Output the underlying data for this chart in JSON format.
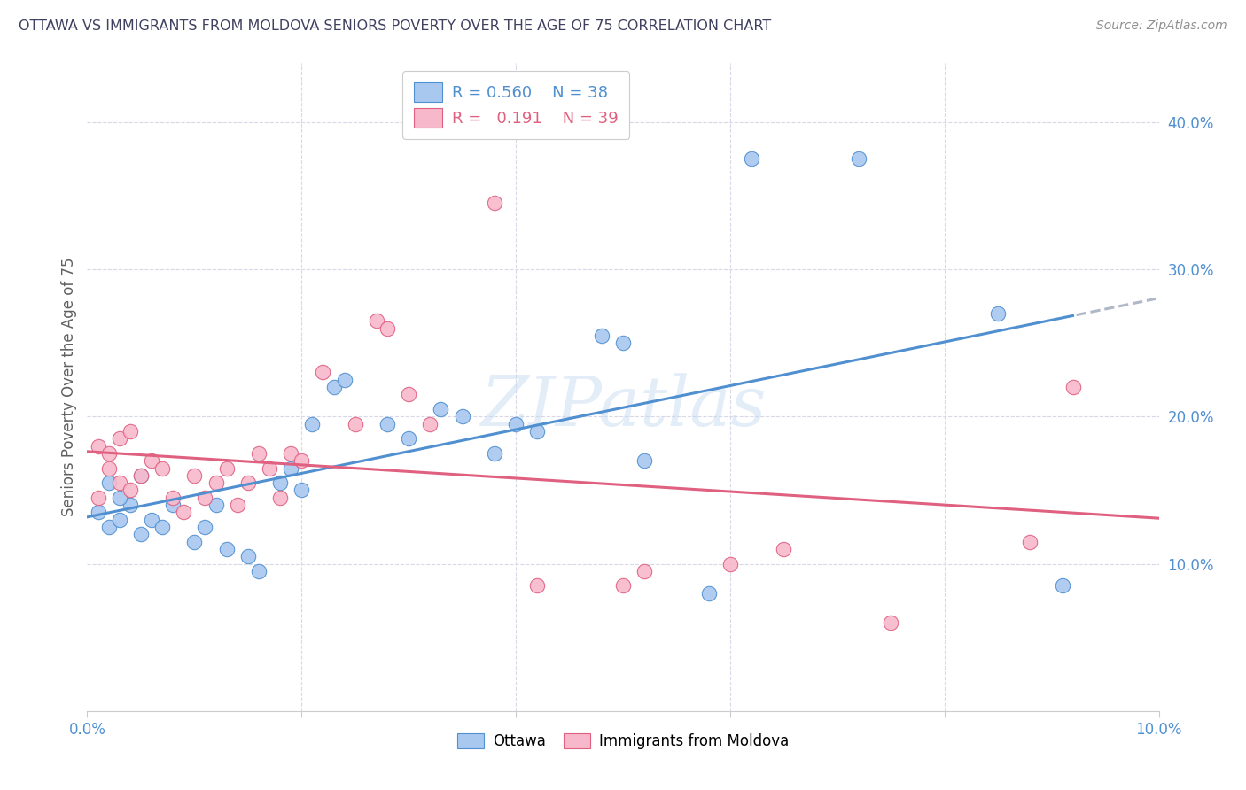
{
  "title": "OTTAWA VS IMMIGRANTS FROM MOLDOVA SENIORS POVERTY OVER THE AGE OF 75 CORRELATION CHART",
  "source": "Source: ZipAtlas.com",
  "ylabel": "Seniors Poverty Over the Age of 75",
  "xlim": [
    0.0,
    0.1
  ],
  "ylim": [
    0.0,
    0.44
  ],
  "ottawa_R": 0.56,
  "ottawa_N": 38,
  "moldova_R": 0.191,
  "moldova_N": 39,
  "ottawa_color": "#a8c8f0",
  "moldova_color": "#f8b8cc",
  "trendline_ottawa_color": "#5090d0",
  "trendline_moldova_color": "#e06080",
  "trendline_dash_color": "#b0b8c8",
  "watermark": "ZIPatlas",
  "background_color": "#ffffff",
  "grid_color": "#d8d8e8",
  "title_color": "#404060",
  "source_color": "#909090",
  "ottawa_x": [
    0.001,
    0.002,
    0.003,
    0.004,
    0.005,
    0.006,
    0.007,
    0.008,
    0.01,
    0.011,
    0.012,
    0.013,
    0.015,
    0.016,
    0.018,
    0.019,
    0.02,
    0.021,
    0.023,
    0.024,
    0.028,
    0.03,
    0.033,
    0.035,
    0.038,
    0.04,
    0.042,
    0.048,
    0.05,
    0.052,
    0.058,
    0.062,
    0.072,
    0.085,
    0.091,
    0.002,
    0.003,
    0.005
  ],
  "ottawa_y": [
    0.135,
    0.125,
    0.13,
    0.14,
    0.12,
    0.13,
    0.125,
    0.14,
    0.115,
    0.125,
    0.14,
    0.11,
    0.105,
    0.095,
    0.155,
    0.165,
    0.15,
    0.195,
    0.22,
    0.225,
    0.195,
    0.185,
    0.205,
    0.2,
    0.175,
    0.195,
    0.19,
    0.255,
    0.25,
    0.17,
    0.08,
    0.375,
    0.375,
    0.27,
    0.085,
    0.155,
    0.145,
    0.16
  ],
  "moldova_x": [
    0.001,
    0.002,
    0.003,
    0.004,
    0.005,
    0.006,
    0.007,
    0.008,
    0.009,
    0.01,
    0.011,
    0.012,
    0.013,
    0.014,
    0.015,
    0.016,
    0.017,
    0.018,
    0.019,
    0.02,
    0.022,
    0.025,
    0.027,
    0.028,
    0.03,
    0.032,
    0.038,
    0.042,
    0.05,
    0.052,
    0.06,
    0.065,
    0.075,
    0.088,
    0.092,
    0.001,
    0.002,
    0.003,
    0.004
  ],
  "moldova_y": [
    0.145,
    0.165,
    0.155,
    0.15,
    0.16,
    0.17,
    0.165,
    0.145,
    0.135,
    0.16,
    0.145,
    0.155,
    0.165,
    0.14,
    0.155,
    0.175,
    0.165,
    0.145,
    0.175,
    0.17,
    0.23,
    0.195,
    0.265,
    0.26,
    0.215,
    0.195,
    0.345,
    0.085,
    0.085,
    0.095,
    0.1,
    0.11,
    0.06,
    0.115,
    0.22,
    0.18,
    0.175,
    0.185,
    0.19
  ]
}
